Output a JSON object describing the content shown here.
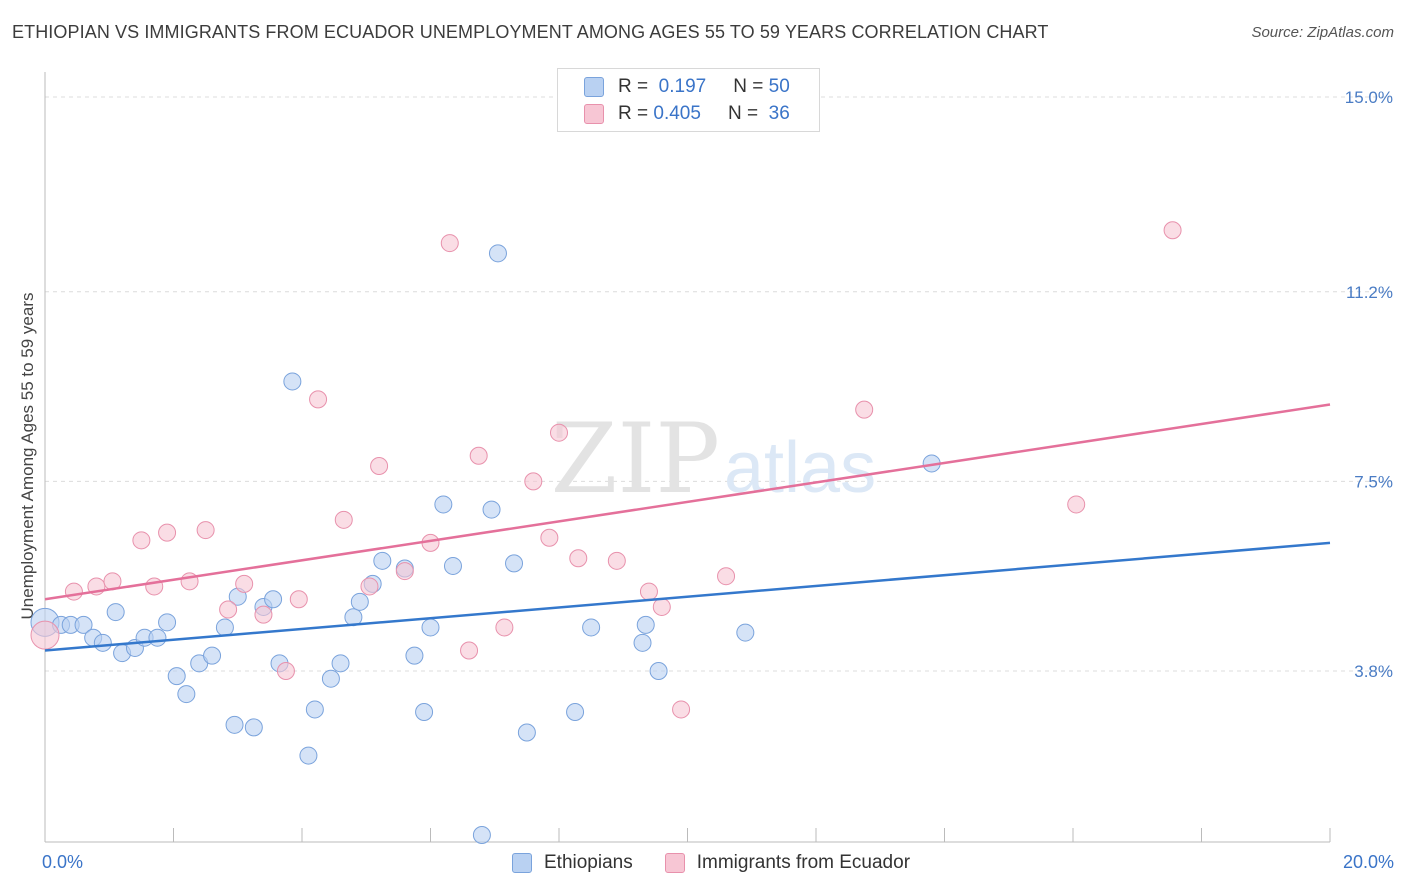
{
  "header": {
    "title": "ETHIOPIAN VS IMMIGRANTS FROM ECUADOR UNEMPLOYMENT AMONG AGES 55 TO 59 YEARS CORRELATION CHART",
    "source": "Source: ZipAtlas.com"
  },
  "legend_top": {
    "rows": [
      {
        "r_label": "R =",
        "r_value": "0.197",
        "n_label": "N =",
        "n_value": "50"
      },
      {
        "r_label": "R =",
        "r_value": "0.405",
        "n_label": "N =",
        "n_value": "36"
      }
    ]
  },
  "legend_bottom": {
    "items": [
      "Ethiopians",
      "Immigrants from Ecuador"
    ]
  },
  "colors": {
    "blue_fill": "#b9d1f2",
    "blue_stroke": "#7aa3dc",
    "blue_line": "#3478cc",
    "pink_fill": "#f7c6d4",
    "pink_stroke": "#e891ac",
    "pink_line": "#e4709a",
    "grid": "#dcdcdc",
    "axis_text": "#4a7cc4"
  },
  "chart_data": {
    "type": "scatter",
    "title": "ETHIOPIAN VS IMMIGRANTS FROM ECUADOR UNEMPLOYMENT AMONG AGES 55 TO 59 YEARS CORRELATION CHART",
    "xlabel": "",
    "ylabel": "Unemployment Among Ages 55 to 59 years",
    "xlim": [
      0,
      20
    ],
    "ylim": [
      0,
      15.5
    ],
    "x_tick_labels": [
      "0.0%",
      "20.0%"
    ],
    "y_ticks": [
      3.8,
      7.5,
      11.2,
      15.0
    ],
    "y_tick_labels": [
      "3.8%",
      "7.5%",
      "11.2%",
      "15.0%"
    ],
    "grid": true,
    "watermark": "ZIPatlas",
    "series": [
      {
        "name": "Ethiopians",
        "r": 0.197,
        "n": 50,
        "trend": [
          [
            0,
            4.2
          ],
          [
            20,
            6.3
          ]
        ],
        "points": [
          [
            0.0,
            4.75
          ],
          [
            0.25,
            4.7
          ],
          [
            0.4,
            4.7
          ],
          [
            0.6,
            4.7
          ],
          [
            0.75,
            4.45
          ],
          [
            0.9,
            4.35
          ],
          [
            1.1,
            4.95
          ],
          [
            1.2,
            4.15
          ],
          [
            1.4,
            4.25
          ],
          [
            1.55,
            4.45
          ],
          [
            1.75,
            4.45
          ],
          [
            1.9,
            4.75
          ],
          [
            2.05,
            3.7
          ],
          [
            2.2,
            3.35
          ],
          [
            2.4,
            3.95
          ],
          [
            2.6,
            4.1
          ],
          [
            2.8,
            4.65
          ],
          [
            2.95,
            2.75
          ],
          [
            3.0,
            5.25
          ],
          [
            3.25,
            2.7
          ],
          [
            3.4,
            5.05
          ],
          [
            3.55,
            5.2
          ],
          [
            3.65,
            3.95
          ],
          [
            3.85,
            9.45
          ],
          [
            4.1,
            2.15
          ],
          [
            4.2,
            3.05
          ],
          [
            4.45,
            3.65
          ],
          [
            4.6,
            3.95
          ],
          [
            4.8,
            4.85
          ],
          [
            4.9,
            5.15
          ],
          [
            5.1,
            5.5
          ],
          [
            5.25,
            5.95
          ],
          [
            5.6,
            5.8
          ],
          [
            5.75,
            4.1
          ],
          [
            5.9,
            3.0
          ],
          [
            6.0,
            4.65
          ],
          [
            6.2,
            7.05
          ],
          [
            6.35,
            5.85
          ],
          [
            6.95,
            6.95
          ],
          [
            7.05,
            11.95
          ],
          [
            7.3,
            5.9
          ],
          [
            7.5,
            2.6
          ],
          [
            8.25,
            3.0
          ],
          [
            8.5,
            4.65
          ],
          [
            9.3,
            4.35
          ],
          [
            9.35,
            4.7
          ],
          [
            9.55,
            3.8
          ],
          [
            10.9,
            4.55
          ],
          [
            13.8,
            7.85
          ],
          [
            6.8,
            0.6
          ]
        ]
      },
      {
        "name": "Immigrants from Ecuador",
        "r": 0.405,
        "n": 36,
        "trend": [
          [
            0,
            5.2
          ],
          [
            20,
            9.0
          ]
        ],
        "points": [
          [
            0.0,
            4.5
          ],
          [
            0.45,
            5.35
          ],
          [
            0.8,
            5.45
          ],
          [
            1.05,
            5.55
          ],
          [
            1.5,
            6.35
          ],
          [
            1.7,
            5.45
          ],
          [
            1.9,
            6.5
          ],
          [
            2.25,
            5.55
          ],
          [
            2.5,
            6.55
          ],
          [
            2.85,
            5.0
          ],
          [
            3.1,
            5.5
          ],
          [
            3.4,
            4.9
          ],
          [
            3.75,
            3.8
          ],
          [
            3.95,
            5.2
          ],
          [
            4.25,
            9.1
          ],
          [
            4.65,
            6.75
          ],
          [
            5.05,
            5.45
          ],
          [
            5.2,
            7.8
          ],
          [
            5.6,
            5.75
          ],
          [
            6.0,
            6.3
          ],
          [
            6.3,
            12.15
          ],
          [
            6.6,
            4.2
          ],
          [
            6.75,
            8.0
          ],
          [
            7.15,
            4.65
          ],
          [
            7.6,
            7.5
          ],
          [
            7.85,
            6.4
          ],
          [
            8.0,
            8.45
          ],
          [
            8.3,
            6.0
          ],
          [
            8.9,
            5.95
          ],
          [
            9.4,
            5.35
          ],
          [
            9.6,
            5.05
          ],
          [
            9.9,
            3.05
          ],
          [
            10.6,
            5.65
          ],
          [
            12.75,
            8.9
          ],
          [
            16.05,
            7.05
          ],
          [
            17.55,
            12.4
          ]
        ]
      }
    ]
  }
}
